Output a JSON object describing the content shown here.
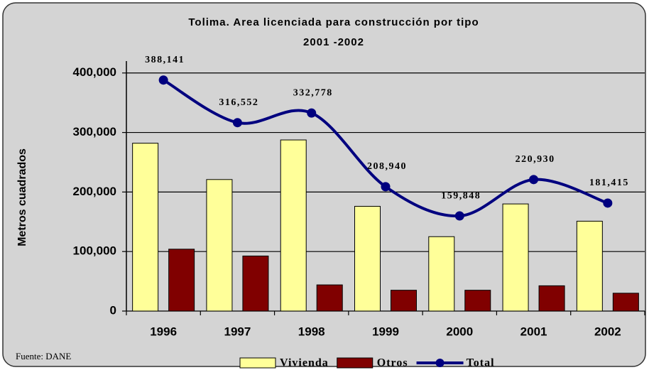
{
  "chart_data": {
    "type": "bar",
    "title": "Tolima. Area licenciada para construcción por tipo",
    "subtitle": "2001 -2002",
    "y_label": "Metros cuadrados",
    "source": "Fuente: DANE",
    "categories": [
      "1996",
      "1997",
      "1998",
      "1999",
      "2000",
      "2001",
      "2002"
    ],
    "series": [
      {
        "name": "Vivienda",
        "type": "bar",
        "color": "#ffff99",
        "values": [
          282000,
          221000,
          287500,
          176000,
          125000,
          180000,
          151000
        ]
      },
      {
        "name": "Otros",
        "type": "bar",
        "color": "#800000",
        "values": [
          104000,
          92500,
          44000,
          35000,
          35000,
          42500,
          30000
        ]
      },
      {
        "name": "Total",
        "type": "line",
        "color": "#00007f",
        "values": [
          388141,
          316552,
          332778,
          208940,
          159848,
          220930,
          181415
        ],
        "value_labels": [
          "388,141",
          "316,552",
          "332,778",
          "208,940",
          "159,848",
          "220,930",
          "181,415"
        ]
      }
    ],
    "ylim": [
      0,
      420000
    ],
    "yticks": [
      0,
      {
        "value": 100000,
        "label": "100,000"
      },
      {
        "value": 200000,
        "label": "200,000"
      },
      {
        "value": 300000,
        "label": "300,000"
      },
      {
        "value": 400000,
        "label": "400,000"
      }
    ],
    "grid": true,
    "legend": "bottom"
  }
}
